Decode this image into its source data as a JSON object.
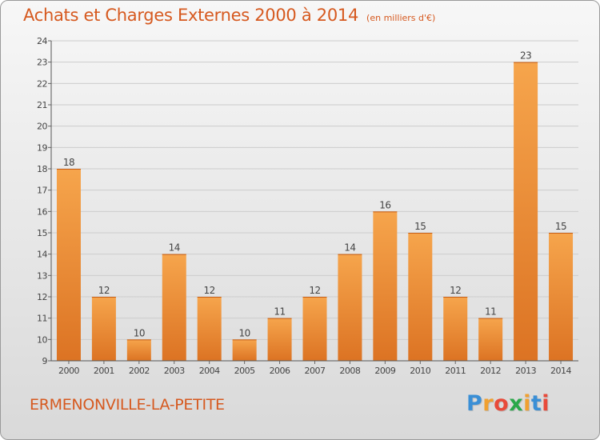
{
  "title": "Achats et Charges Externes 2000 à 2014",
  "subtitle": "(en milliers d'€)",
  "commune": "ERMENONVILLE-LA-PETITE",
  "logo": {
    "letters": [
      "P",
      "r",
      "o",
      "x",
      "i",
      "t",
      "i"
    ],
    "colors": [
      "#3a8fd6",
      "#f0a030",
      "#e84a3a",
      "#2aa84a",
      "#f0a030",
      "#3a8fd6",
      "#e84a3a"
    ]
  },
  "colors": {
    "bar_light": "#f6a54c",
    "bar_dark": "#dc7323",
    "title": "#d6591f",
    "grid": "#cccccc"
  },
  "chart_data": {
    "type": "bar",
    "categories": [
      "2000",
      "2001",
      "2002",
      "2003",
      "2004",
      "2005",
      "2006",
      "2007",
      "2008",
      "2009",
      "2010",
      "2011",
      "2012",
      "2013",
      "2014"
    ],
    "values": [
      18,
      12,
      10,
      14,
      12,
      10,
      11,
      12,
      14,
      16,
      15,
      12,
      11,
      23,
      15
    ],
    "ylim": [
      9,
      24
    ],
    "yticks": [
      9,
      10,
      11,
      12,
      13,
      14,
      15,
      16,
      17,
      18,
      19,
      20,
      21,
      22,
      23,
      24
    ],
    "grid": true,
    "title": "Achats et Charges Externes 2000 à 2014",
    "xlabel": "",
    "ylabel": ""
  }
}
